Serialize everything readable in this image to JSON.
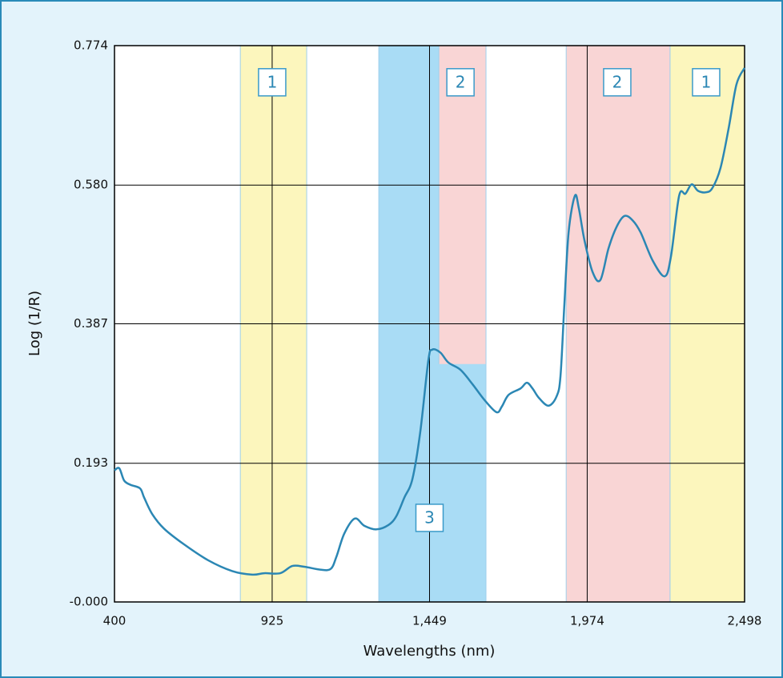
{
  "chart_data": {
    "type": "line",
    "x_label": "Wavelengths (nm)",
    "y_label": "Log (1/R)",
    "xlim": [
      400,
      2498
    ],
    "ylim": [
      0,
      0.774
    ],
    "xticks": [
      400,
      925,
      {
        "value": 1449,
        "label": "1,449"
      },
      {
        "value": 1974,
        "label": "1,974"
      },
      {
        "value": 2498,
        "label": "2,498"
      }
    ],
    "yticks": [
      {
        "value": 0,
        "label": "-0.000"
      },
      0.193,
      0.387,
      {
        "value": 0.58,
        "label": "0.580"
      },
      0.774
    ],
    "grid": true,
    "bands": [
      {
        "label": "1",
        "color": "#fcf6bd",
        "xrange": [
          819,
          1040
        ],
        "label_x": 925,
        "label_y": 0.723
      },
      {
        "label": "3",
        "color": "#a9dcf5",
        "xrange": [
          1280,
          1637
        ],
        "label_x": 1449,
        "label_y": 0.117
      },
      {
        "label": "2",
        "color": "#f9d5d5",
        "xrange": [
          1480,
          1637
        ],
        "yrange": [
          0.331,
          0.774
        ],
        "label_x": 1552,
        "label_y": 0.723
      },
      {
        "label": "2",
        "color": "#f9d5d5",
        "xrange": [
          1904,
          2250
        ],
        "label_x": 2074,
        "label_y": 0.723
      },
      {
        "label": "1",
        "color": "#fcf6bd",
        "xrange": [
          2250,
          2498
        ],
        "label_x": 2370,
        "label_y": 0.723
      }
    ],
    "series": [
      {
        "color": "#2b87b4",
        "x": [
          400,
          416,
          432,
          453,
          485,
          499,
          526,
          565,
          632,
          712,
          792,
          859,
          899,
          952,
          992,
          1032,
          1085,
          1120,
          1139,
          1165,
          1200,
          1232,
          1272,
          1312,
          1338,
          1365,
          1392,
          1418,
          1445,
          1458,
          1485,
          1512,
          1552,
          1592,
          1632,
          1672,
          1690,
          1712,
          1752,
          1773,
          1792,
          1813,
          1845,
          1872,
          1885,
          1898,
          1912,
          1933,
          1946,
          1965,
          1992,
          2018,
          2045,
          2072,
          2098,
          2125,
          2152,
          2192,
          2232,
          2253,
          2280,
          2301,
          2322,
          2343,
          2370,
          2391,
          2418,
          2445,
          2471,
          2498
        ],
        "values": [
          0.183,
          0.186,
          0.169,
          0.163,
          0.158,
          0.145,
          0.122,
          0.102,
          0.08,
          0.058,
          0.043,
          0.038,
          0.04,
          0.04,
          0.05,
          0.049,
          0.045,
          0.046,
          0.063,
          0.095,
          0.116,
          0.106,
          0.101,
          0.107,
          0.119,
          0.145,
          0.171,
          0.236,
          0.336,
          0.351,
          0.347,
          0.333,
          0.323,
          0.303,
          0.281,
          0.264,
          0.272,
          0.288,
          0.297,
          0.305,
          0.297,
          0.284,
          0.273,
          0.286,
          0.314,
          0.414,
          0.514,
          0.565,
          0.548,
          0.503,
          0.459,
          0.448,
          0.492,
          0.522,
          0.537,
          0.531,
          0.514,
          0.475,
          0.453,
          0.481,
          0.565,
          0.568,
          0.581,
          0.572,
          0.57,
          0.576,
          0.604,
          0.659,
          0.72,
          0.743
        ]
      }
    ]
  }
}
